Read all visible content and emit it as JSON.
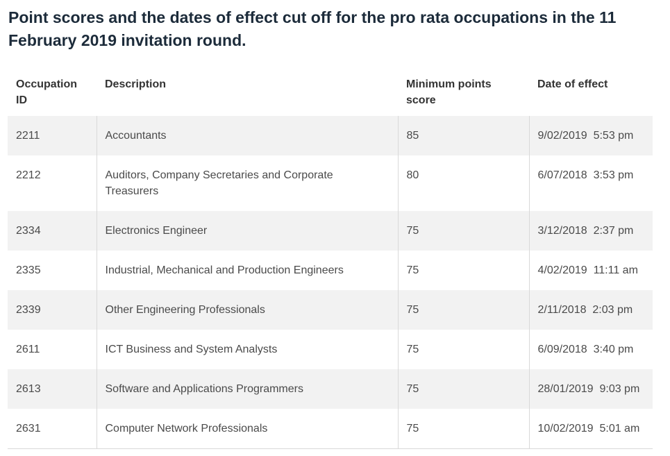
{
  "heading": "Point scores and the dates of effect cut off for the pro rata occupations in the 11 February 2019 invitation round.",
  "table": {
    "headers": [
      "Occupation ID",
      "Description",
      "Minimum points score",
      "Date of effect"
    ],
    "rows": [
      [
        "2211",
        "Accountants",
        "85",
        "9/02/2019  5:53 pm"
      ],
      [
        "2212",
        "Auditors, Company Secretaries and Corporate Treasurers",
        "80",
        "6/07/2018  3:53 pm"
      ],
      [
        "2334",
        "Electronics Engineer",
        "75",
        "3/12/2018  2:37 pm"
      ],
      [
        "2335",
        "Industrial, Mechanical and Production Engineers",
        "75",
        "4/02/2019  11:11 am"
      ],
      [
        "2339",
        "Other Engineering Professionals",
        "75",
        "2/11/2018  2:03 pm"
      ],
      [
        "2611",
        "ICT Business and System Analysts",
        "75",
        "6/09/2018  3:40 pm"
      ],
      [
        "2613",
        "Software and Applications Programmers",
        "75",
        "28/01/2019  9:03 pm"
      ],
      [
        "2631",
        "Computer Network Professionals",
        "75",
        "10/02/2019  5:01 am"
      ]
    ]
  }
}
